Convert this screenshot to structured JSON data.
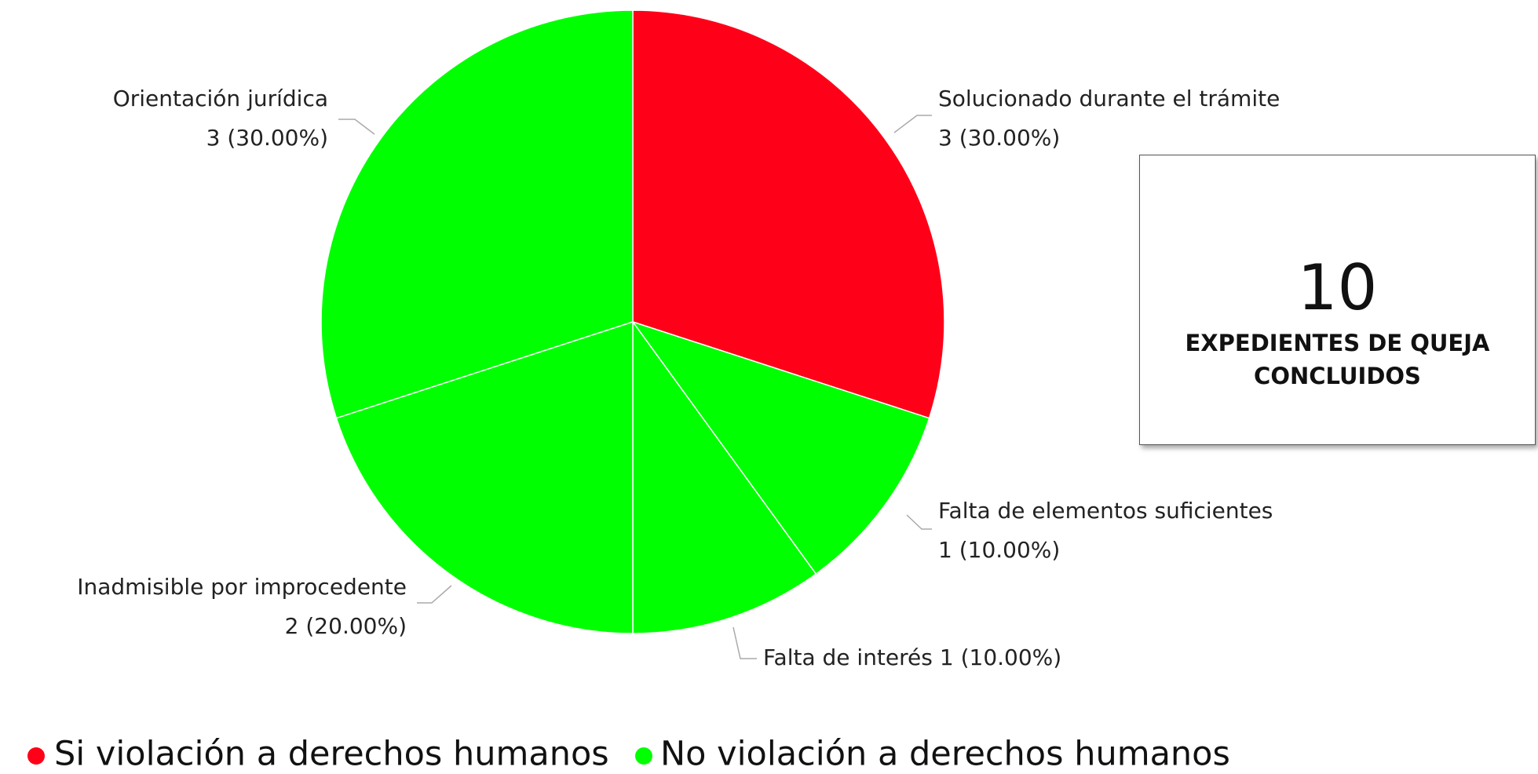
{
  "chart_data": {
    "type": "pie",
    "categories": [
      "Solucionado durante el trámite",
      "Falta de elementos suficientes",
      "Falta de interés",
      "Inadmisible por improcedente",
      "Orientación jurídica"
    ],
    "values": [
      3,
      1,
      1,
      2,
      3
    ],
    "value_labels": [
      "3 (30.00%)",
      "1 (10.00%)",
      "1 (10.00%)",
      "2 (20.00%)",
      "3 (30.00%)"
    ],
    "colors": [
      "#ff0019",
      "#00ff00",
      "#00ff00",
      "#00ff00",
      "#00ff00"
    ],
    "legend": [
      {
        "name": "Si violación a derechos humanos",
        "color": "#ff0019"
      },
      {
        "name": "No violación a derechos humanos",
        "color": "#00ff00"
      }
    ],
    "total": 10,
    "total_label": "EXPEDIENTES DE QUEJA CONCLUIDOS"
  }
}
